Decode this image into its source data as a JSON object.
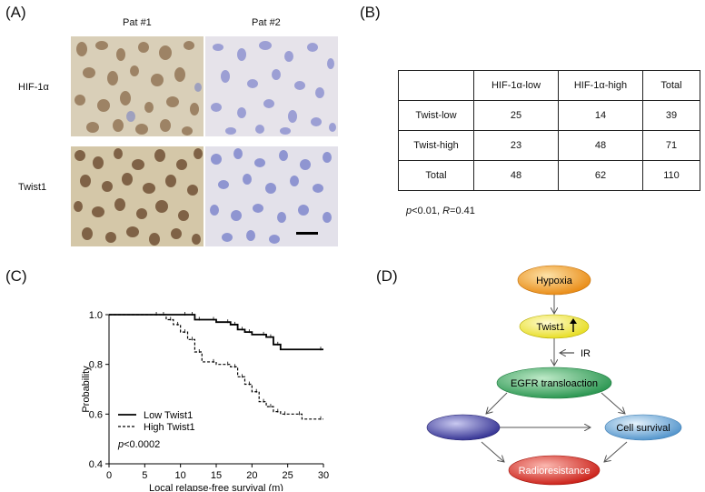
{
  "panels": {
    "a": "(A)",
    "b": "(B)",
    "c": "(C)",
    "d": "(D)"
  },
  "panel_a": {
    "col_labels": [
      "Pat #1",
      "Pat #2"
    ],
    "row_labels": [
      "HIF-1α",
      "Twist1"
    ]
  },
  "panel_b": {
    "header": [
      "",
      "HIF-1α-low",
      "HIF-1α-high",
      "Total"
    ],
    "rows": [
      [
        "Twist-low",
        "25",
        "14",
        "39"
      ],
      [
        "Twist-high",
        "23",
        "48",
        "71"
      ],
      [
        "Total",
        "48",
        "62",
        "110"
      ]
    ],
    "stat_p": "p",
    "stat_p_rest": "<0.01, ",
    "stat_r": "R",
    "stat_r_rest": "=0.41"
  },
  "chart_data": {
    "type": "line",
    "title": "",
    "xlabel": "Local relapse-free survival (m)",
    "ylabel": "Probability",
    "xlim": [
      0,
      30
    ],
    "ylim": [
      0.4,
      1.0
    ],
    "xticks": [
      "0",
      "5",
      "10",
      "15",
      "20",
      "25",
      "30"
    ],
    "yticks": [
      "1.0",
      "0.8",
      "0.6",
      "0.4"
    ],
    "annotation": "p<0.0002",
    "legend_position": "bottom-left",
    "series": [
      {
        "name": "Low Twist1",
        "style": "solid",
        "x": [
          0,
          11,
          12,
          13,
          15,
          17,
          18,
          19,
          20,
          22,
          23,
          24,
          30
        ],
        "y": [
          1.0,
          1.0,
          0.98,
          0.98,
          0.97,
          0.96,
          0.94,
          0.93,
          0.92,
          0.91,
          0.88,
          0.86,
          0.86
        ]
      },
      {
        "name": "High Twist1",
        "style": "dashed",
        "x": [
          0,
          7,
          8,
          9,
          10,
          11,
          12,
          13,
          15,
          17,
          18,
          19,
          20,
          21,
          22,
          23,
          24,
          25,
          27,
          30
        ],
        "y": [
          1.0,
          1.0,
          0.98,
          0.96,
          0.93,
          0.9,
          0.85,
          0.81,
          0.8,
          0.79,
          0.75,
          0.72,
          0.69,
          0.65,
          0.63,
          0.61,
          0.6,
          0.6,
          0.58,
          0.58
        ]
      }
    ]
  },
  "panel_d": {
    "nodes": {
      "hypoxia": "Hypoxia",
      "twist": "Twist1",
      "egfr": "EGFR transloaction",
      "blank": "",
      "survival": "Cell survival",
      "radio": "Radioresistance"
    },
    "ir_label": "IR",
    "colors": {
      "hypoxia": "#f5a623",
      "twist": "#f2ea3a",
      "egfr": "#3aa85a",
      "blank": "#3b3aa8",
      "survival": "#6fb0e0",
      "radio": "#e02a20"
    }
  }
}
